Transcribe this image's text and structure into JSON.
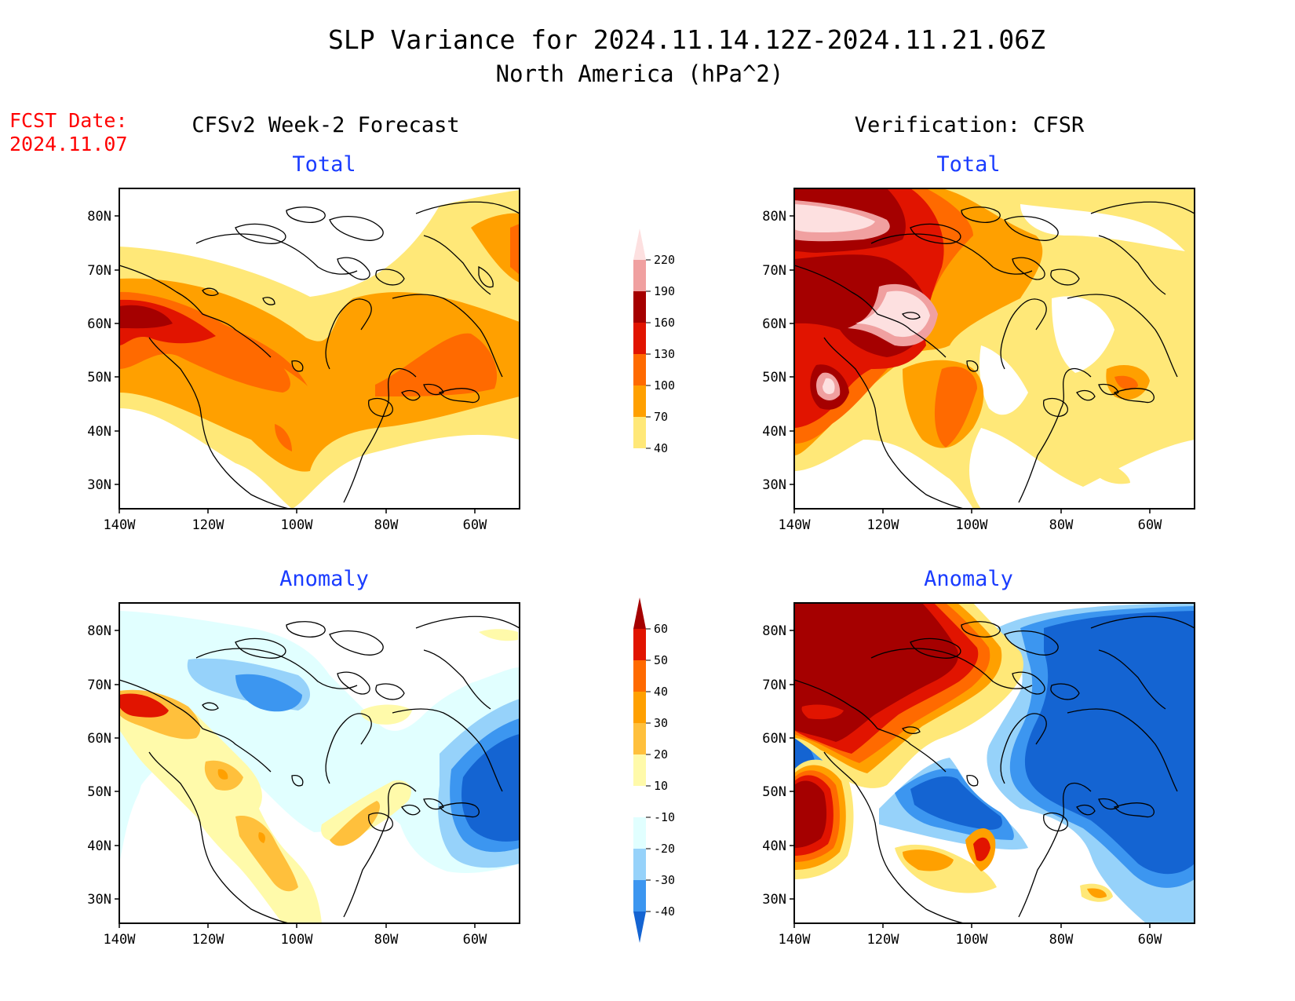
{
  "header": {
    "title": "SLP Variance for 2024.11.14.12Z-2024.11.21.06Z",
    "subtitle": "North America (hPa^2)",
    "fcst_label": "FCST Date:",
    "fcst_date": "2024.11.07"
  },
  "columns": {
    "left": "CFSv2 Week-2 Forecast",
    "right": "Verification: CFSR"
  },
  "panel_titles": {
    "total": "Total",
    "anomaly": "Anomaly"
  },
  "axes": {
    "lat_labels": [
      "80N",
      "70N",
      "60N",
      "50N",
      "40N",
      "30N"
    ],
    "lon_labels": [
      "140W",
      "120W",
      "100W",
      "80W",
      "60W"
    ]
  },
  "colorbars": {
    "total": {
      "levels": [
        "40",
        "70",
        "100",
        "130",
        "160",
        "190",
        "220"
      ],
      "colors": [
        "#ffe878",
        "#ffa000",
        "#ff6a00",
        "#e11400",
        "#a50000",
        "#f0a0a0",
        "#fde0e0"
      ]
    },
    "anomaly": {
      "levels": [
        "-40",
        "-30",
        "-20",
        "-10",
        "10",
        "20",
        "30",
        "40",
        "50",
        "60"
      ],
      "colors": [
        "#1464d2",
        "#3c96f0",
        "#96d2fa",
        "#e1ffff",
        "#ffffff",
        "#fffaaa",
        "#ffc03c",
        "#ffa000",
        "#ff6a00",
        "#e11400",
        "#a50000"
      ]
    }
  },
  "colors": {
    "title": "#000000",
    "panel_title": "#1a3cff",
    "fcst": "#ff0000"
  }
}
